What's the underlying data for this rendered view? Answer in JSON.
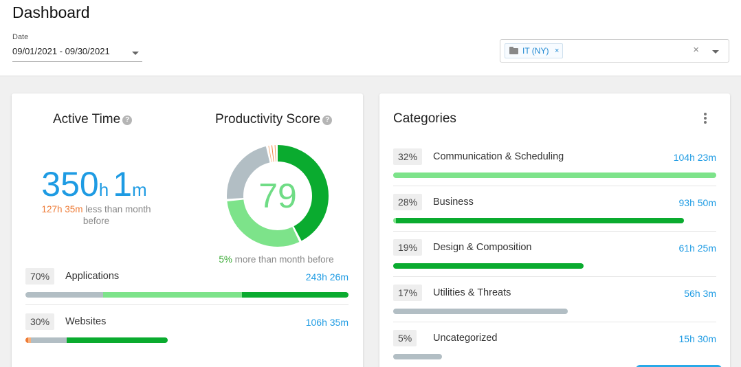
{
  "page": {
    "title": "Dashboard"
  },
  "date": {
    "label": "Date",
    "value": "09/01/2021 - 09/30/2021"
  },
  "filter": {
    "chip": "IT (NY)",
    "chip_remove": "×",
    "clear": "×"
  },
  "active_time": {
    "title": "Active Time",
    "help": "?",
    "hours": "350",
    "hours_unit": "h",
    "minutes": "1",
    "minutes_unit": "m",
    "compare_value": "127h 35m",
    "compare_text": "less than month before"
  },
  "productivity": {
    "title": "Productivity Score",
    "help": "?",
    "score": "79",
    "compare_value": "5%",
    "compare_text": "more than month before",
    "donut": [
      {
        "status": "productive",
        "fraction": 0.43,
        "color": "#0aab2f"
      },
      {
        "status": "productive-light",
        "fraction": 0.31,
        "color": "#7de38a"
      },
      {
        "status": "neutral",
        "fraction": 0.23,
        "color": "#b2bec4"
      },
      {
        "status": "unproductive-light",
        "fraction": 0.01,
        "color": "#f7b07c"
      },
      {
        "status": "unproductive",
        "fraction": 0.01,
        "color": "#ee7b36"
      },
      {
        "status": "unproductive-dark",
        "fraction": 0.01,
        "color": "#f29b5e"
      }
    ]
  },
  "usage": [
    {
      "percent": "70%",
      "name": "Applications",
      "time": "243h 26m",
      "bar_fraction": 1.0,
      "segments": [
        {
          "fraction": 0.24,
          "color": "#b2bec4"
        },
        {
          "fraction": 0.43,
          "color": "#7de38a"
        },
        {
          "fraction": 0.33,
          "color": "#0aab2f"
        }
      ]
    },
    {
      "percent": "30%",
      "name": "Websites",
      "time": "106h 35m",
      "bar_fraction": 0.44,
      "segments": [
        {
          "fraction": 0.02,
          "color": "#ee7b36"
        },
        {
          "fraction": 0.02,
          "color": "#f7b07c"
        },
        {
          "fraction": 0.25,
          "color": "#b2bec4"
        },
        {
          "fraction": 0.71,
          "color": "#0aab2f"
        }
      ]
    }
  ],
  "categories": {
    "title": "Categories",
    "items": [
      {
        "percent": "32%",
        "name": "Communication & Scheduling",
        "time": "104h 23m",
        "bar_fraction": 1.0,
        "segments": [
          {
            "fraction": 1.0,
            "color": "#7de38a"
          }
        ]
      },
      {
        "percent": "28%",
        "name": "Business",
        "time": "93h 50m",
        "bar_fraction": 0.9,
        "segments": [
          {
            "fraction": 0.01,
            "color": "#7de38a"
          },
          {
            "fraction": 0.99,
            "color": "#0aab2f"
          }
        ]
      },
      {
        "percent": "19%",
        "name": "Design & Composition",
        "time": "61h 25m",
        "bar_fraction": 0.59,
        "segments": [
          {
            "fraction": 1.0,
            "color": "#0aab2f"
          }
        ]
      },
      {
        "percent": "17%",
        "name": "Utilities & Threats",
        "time": "56h 3m",
        "bar_fraction": 0.54,
        "segments": [
          {
            "fraction": 1.0,
            "color": "#b2bec4"
          }
        ]
      },
      {
        "percent": "5%",
        "name": "Uncategorized",
        "time": "15h 30m",
        "bar_fraction": 0.15,
        "segments": [
          {
            "fraction": 1.0,
            "color": "#b2bec4"
          }
        ]
      }
    ]
  }
}
